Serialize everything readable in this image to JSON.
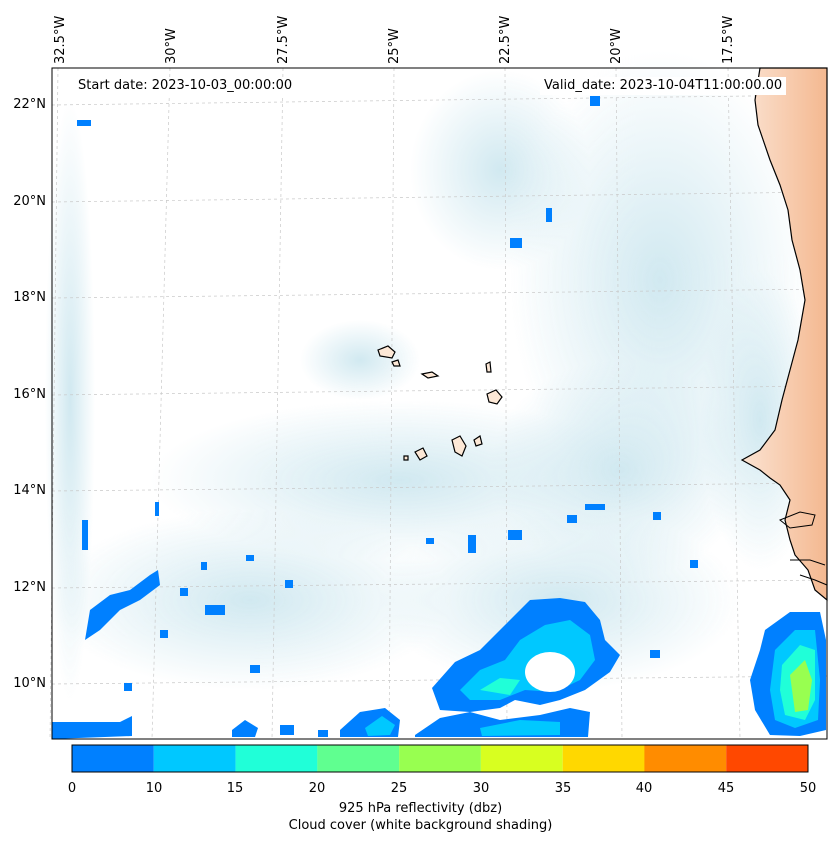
{
  "map": {
    "start_date": "Start date: 2023-10-03_00:00:00",
    "valid_date": "Valid_date: 2023-10-04T11:00:00.00",
    "lon_labels": [
      "32.5°W",
      "30°W",
      "27.5°W",
      "25°W",
      "22.5°W",
      "20°W",
      "17.5°W"
    ],
    "lat_labels": [
      "22°N",
      "20°N",
      "18°N",
      "16°N",
      "14°N",
      "12°N",
      "10°N"
    ]
  },
  "colorbar": {
    "ticks": [
      "0",
      "10",
      "15",
      "20",
      "25",
      "30",
      "35",
      "40",
      "45",
      "50"
    ],
    "colors": [
      "#0080ff",
      "#00c8ff",
      "#20ffd8",
      "#60ff90",
      "#98ff50",
      "#d8ff20",
      "#ffd800",
      "#ff8c00",
      "#ff4800"
    ],
    "label": "925 hPa reflectivity (dbz)",
    "sublabel": "Cloud cover (white background shading)"
  },
  "colors": {
    "ocean": "#ffffff",
    "cloud": "#d4ebf1",
    "land": "#f7c9a6",
    "coast": "#000000"
  }
}
